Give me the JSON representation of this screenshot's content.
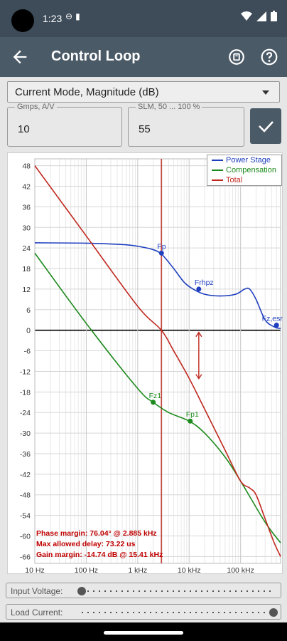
{
  "status_bar": {
    "time": "1:23",
    "icons": [
      "dnd-icon",
      "sd-card-icon",
      "wifi-icon",
      "signal-icon",
      "battery-icon"
    ]
  },
  "app_bar": {
    "title": "Control Loop",
    "actions": [
      "reset-icon",
      "help-icon"
    ]
  },
  "mode_select": {
    "value": "Current Mode, Magnitude (dB)"
  },
  "gmps": {
    "label": "Gmps, A/V",
    "value": "10"
  },
  "slm": {
    "label": "SLM, 50 ... 100 %",
    "value": "55"
  },
  "colors": {
    "power_stage": "#1f3fbf",
    "compensation": "#1c8a1c",
    "total": "#c0281e",
    "accent": "#4b5a67"
  },
  "chart_data": {
    "type": "line",
    "xscale": "log",
    "xlim": [
      10,
      600000
    ],
    "ylim": [
      -68,
      50
    ],
    "x_ticks": [
      10,
      100,
      1000,
      10000,
      100000
    ],
    "x_tick_labels": [
      "10 Hz",
      "100 Hz",
      "1 kHz",
      "10 kHz",
      "100 kHz"
    ],
    "y_ticks": [
      48,
      42,
      36,
      30,
      24,
      18,
      12,
      6,
      0,
      -6,
      -12,
      -18,
      -24,
      -30,
      -36,
      -42,
      -48,
      -54,
      -60,
      -66
    ],
    "grid": true,
    "legend_position": "top-right",
    "crossover_hz": 2885,
    "gain_margin_marker": {
      "x": 15410,
      "y_from": 0,
      "y_to": -14.74
    },
    "series": [
      {
        "name": "Power Stage",
        "x": [
          10,
          100,
          500,
          1000,
          2000,
          3000,
          5000,
          8000,
          12000,
          20000,
          40000,
          80000,
          120000,
          150000,
          200000,
          300000,
          450000,
          600000
        ],
        "y": [
          25.5,
          25.4,
          25,
          24.5,
          23.5,
          22,
          18,
          14,
          12,
          10.5,
          10,
          10.5,
          12,
          12,
          9,
          3,
          1,
          0.5
        ]
      },
      {
        "name": "Compensation",
        "x": [
          10,
          100,
          1000,
          2000,
          4000,
          10000,
          20000,
          50000,
          100000,
          300000,
          600000
        ],
        "y": [
          22.5,
          2,
          -17,
          -21,
          -24,
          -26.5,
          -30,
          -37,
          -44,
          -56,
          -62
        ]
      },
      {
        "name": "Total",
        "x": [
          10,
          100,
          1000,
          2885,
          5000,
          10000,
          20000,
          50000,
          100000,
          150000,
          200000,
          300000,
          450000,
          600000
        ],
        "y": [
          48,
          27.5,
          7,
          0,
          -6,
          -14,
          -23,
          -35,
          -44,
          -46,
          -48,
          -55,
          -62,
          -66
        ]
      }
    ],
    "points": [
      {
        "label": "Fp",
        "x": 2900,
        "y": 22.5,
        "series": "Power Stage"
      },
      {
        "label": "Frhpz",
        "x": 15400,
        "y": 12,
        "series": "Power Stage"
      },
      {
        "label": "Fz,esr",
        "x": 500000,
        "y": 1.5,
        "series": "Power Stage"
      },
      {
        "label": "Fz1",
        "x": 2000,
        "y": -21,
        "series": "Compensation"
      },
      {
        "label": "Fp1",
        "x": 10500,
        "y": -26.5,
        "series": "Compensation"
      }
    ],
    "annotations": [
      "Phase margin: 76.04° @ 2.885 kHz",
      "Max allowed delay: 73.22 us",
      "Gain margin: -14.74 dB @ 15.41 kHz"
    ]
  },
  "sliders": [
    {
      "label": "Input Voltage:",
      "value_fraction": 0.0
    },
    {
      "label": "Load Current:",
      "value_fraction": 1.0
    }
  ]
}
